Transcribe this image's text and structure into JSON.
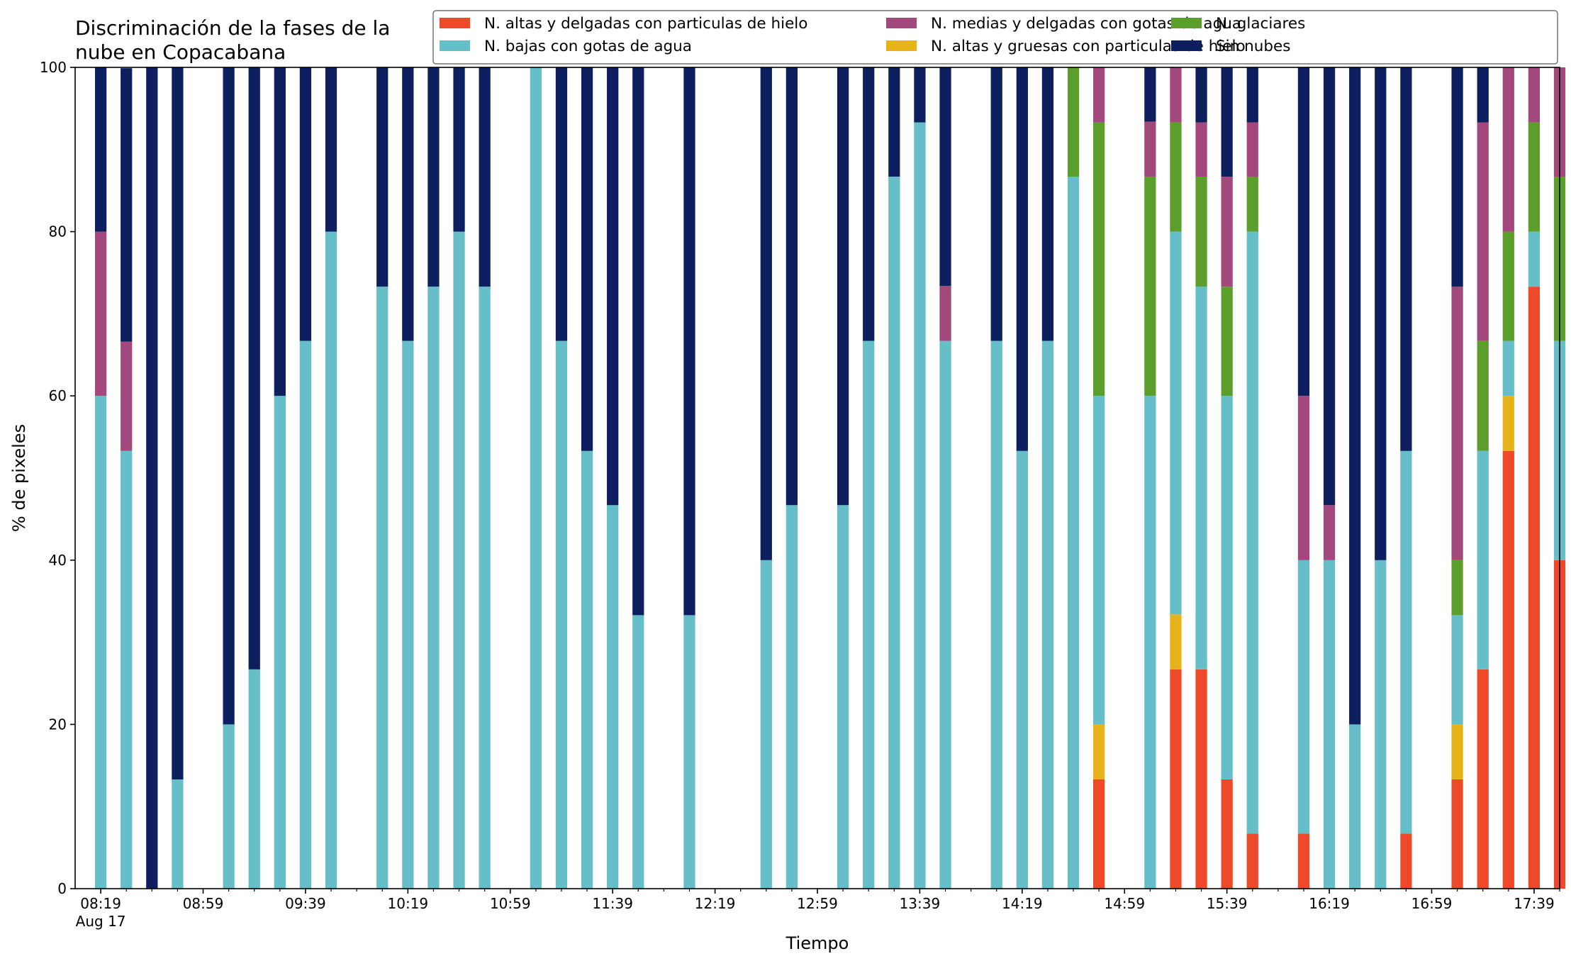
{
  "chart_data": {
    "type": "bar",
    "stacked": true,
    "title_lines": [
      "Discriminación de la fases de la",
      "nube en Copacabana"
    ],
    "xlabel": "Tiempo",
    "ylabel": "% de pixeles",
    "ylim": [
      0,
      100
    ],
    "yticks": [
      0,
      20,
      40,
      60,
      80,
      100
    ],
    "xlim_minutes": [
      -10,
      570
    ],
    "xticks_major": [
      {
        "offset": 0,
        "label": "08:19",
        "sublabel": "Aug 17"
      },
      {
        "offset": 40,
        "label": "08:59"
      },
      {
        "offset": 80,
        "label": "09:39"
      },
      {
        "offset": 120,
        "label": "10:19"
      },
      {
        "offset": 160,
        "label": "10:59"
      },
      {
        "offset": 200,
        "label": "11:39"
      },
      {
        "offset": 240,
        "label": "12:19"
      },
      {
        "offset": 280,
        "label": "12:59"
      },
      {
        "offset": 320,
        "label": "13:39"
      },
      {
        "offset": 360,
        "label": "14:19"
      },
      {
        "offset": 400,
        "label": "14:59"
      },
      {
        "offset": 440,
        "label": "15:39"
      },
      {
        "offset": 480,
        "label": "16:19"
      },
      {
        "offset": 520,
        "label": "16:59"
      },
      {
        "offset": 560,
        "label": "17:39"
      }
    ],
    "minor_tick_step": 10,
    "bar_width_minutes": 4.5,
    "grid": false,
    "legend_position": "top-right",
    "series": [
      {
        "name": "N. altas y delgadas con particulas de hielo",
        "color": "#ee4a2a"
      },
      {
        "name": "N. altas y gruesas con particulas de hielo",
        "color": "#e6b418"
      },
      {
        "name": "N. bajas con gotas de agua",
        "color": "#66bec9"
      },
      {
        "name": "N. glaciares",
        "color": "#5c9e2c"
      },
      {
        "name": "N. medias y delgadas con gotas de agua",
        "color": "#a3487d"
      },
      {
        "name": "Sin nubes",
        "color": "#0d1f5e"
      }
    ],
    "legend_order": [
      0,
      2,
      4,
      1,
      3,
      5
    ],
    "bars": [
      {
        "t": 0,
        "v": [
          0,
          0,
          60,
          0,
          20,
          20
        ]
      },
      {
        "t": 10,
        "v": [
          0,
          0,
          53.3,
          0,
          13.3,
          33.3
        ]
      },
      {
        "t": 20,
        "v": [
          0,
          0,
          0,
          0,
          0,
          100
        ]
      },
      {
        "t": 30,
        "v": [
          0,
          0,
          13.3,
          0,
          0,
          86.7
        ]
      },
      {
        "t": 50,
        "v": [
          0,
          0,
          20,
          0,
          0,
          80
        ]
      },
      {
        "t": 60,
        "v": [
          0,
          0,
          26.7,
          0,
          0,
          73.3
        ]
      },
      {
        "t": 70,
        "v": [
          0,
          0,
          60,
          0,
          0,
          40
        ]
      },
      {
        "t": 80,
        "v": [
          0,
          0,
          66.7,
          0,
          0,
          33.3
        ]
      },
      {
        "t": 90,
        "v": [
          0,
          0,
          80,
          0,
          0,
          20
        ]
      },
      {
        "t": 110,
        "v": [
          0,
          0,
          73.3,
          0,
          0,
          26.7
        ]
      },
      {
        "t": 120,
        "v": [
          0,
          0,
          66.7,
          0,
          0,
          33.3
        ]
      },
      {
        "t": 130,
        "v": [
          0,
          0,
          73.3,
          0,
          0,
          26.7
        ]
      },
      {
        "t": 140,
        "v": [
          0,
          0,
          80,
          0,
          0,
          20
        ]
      },
      {
        "t": 150,
        "v": [
          0,
          0,
          73.3,
          0,
          0,
          26.7
        ]
      },
      {
        "t": 170,
        "v": [
          0,
          0,
          100,
          0,
          0,
          0
        ]
      },
      {
        "t": 180,
        "v": [
          0,
          0,
          66.7,
          0,
          0,
          33.3
        ]
      },
      {
        "t": 190,
        "v": [
          0,
          0,
          53.3,
          0,
          0,
          46.7
        ]
      },
      {
        "t": 200,
        "v": [
          0,
          0,
          46.7,
          0,
          0,
          53.3
        ]
      },
      {
        "t": 210,
        "v": [
          0,
          0,
          33.3,
          0,
          0,
          66.7
        ]
      },
      {
        "t": 230,
        "v": [
          0,
          0,
          33.3,
          0,
          0,
          66.7
        ]
      },
      {
        "t": 260,
        "v": [
          0,
          0,
          40,
          0,
          0,
          60
        ]
      },
      {
        "t": 270,
        "v": [
          0,
          0,
          46.7,
          0,
          0,
          53.3
        ]
      },
      {
        "t": 290,
        "v": [
          0,
          0,
          46.7,
          0,
          0,
          53.3
        ]
      },
      {
        "t": 300,
        "v": [
          0,
          0,
          66.7,
          0,
          0,
          33.3
        ]
      },
      {
        "t": 310,
        "v": [
          0,
          0,
          86.7,
          0,
          0,
          13.3
        ]
      },
      {
        "t": 320,
        "v": [
          0,
          0,
          93.3,
          0,
          0,
          6.7
        ]
      },
      {
        "t": 330,
        "v": [
          0,
          0,
          66.7,
          0,
          6.7,
          26.6
        ]
      },
      {
        "t": 350,
        "v": [
          0,
          0,
          66.7,
          0,
          0,
          33.3
        ]
      },
      {
        "t": 360,
        "v": [
          0,
          0,
          53.3,
          0,
          0,
          46.7
        ]
      },
      {
        "t": 370,
        "v": [
          0,
          0,
          66.7,
          0,
          0,
          33.3
        ]
      },
      {
        "t": 380,
        "v": [
          0,
          0,
          86.7,
          13.3,
          0,
          0
        ]
      },
      {
        "t": 390,
        "v": [
          13.3,
          6.7,
          40,
          33.3,
          6.7,
          0
        ]
      },
      {
        "t": 410,
        "v": [
          0,
          0,
          60,
          26.7,
          6.7,
          6.6
        ]
      },
      {
        "t": 420,
        "v": [
          26.7,
          6.7,
          46.6,
          13.3,
          6.7,
          0
        ]
      },
      {
        "t": 430,
        "v": [
          26.7,
          0,
          46.6,
          13.4,
          6.6,
          6.7
        ]
      },
      {
        "t": 440,
        "v": [
          13.3,
          0,
          46.7,
          13.3,
          13.4,
          13.3
        ]
      },
      {
        "t": 450,
        "v": [
          6.7,
          0,
          73.3,
          6.7,
          6.6,
          6.7
        ]
      },
      {
        "t": 470,
        "v": [
          6.7,
          0,
          33.3,
          0,
          20,
          40
        ]
      },
      {
        "t": 480,
        "v": [
          0,
          0,
          40,
          0,
          6.7,
          53.3
        ]
      },
      {
        "t": 490,
        "v": [
          0,
          0,
          20,
          0,
          0,
          80
        ]
      },
      {
        "t": 500,
        "v": [
          0,
          0,
          40,
          0,
          0,
          60
        ]
      },
      {
        "t": 510,
        "v": [
          6.7,
          0,
          46.6,
          0,
          0,
          46.7
        ]
      },
      {
        "t": 530,
        "v": [
          13.3,
          6.7,
          13.3,
          6.7,
          33.3,
          26.7
        ]
      },
      {
        "t": 540,
        "v": [
          26.7,
          0,
          26.6,
          13.4,
          26.6,
          6.7
        ]
      },
      {
        "t": 550,
        "v": [
          53.3,
          6.7,
          6.7,
          13.3,
          20,
          0
        ]
      },
      {
        "t": 560,
        "v": [
          73.3,
          0,
          6.7,
          13.3,
          6.7,
          0
        ]
      },
      {
        "t": 570,
        "v": [
          40,
          0,
          26.7,
          20,
          13.3,
          0
        ]
      }
    ]
  }
}
